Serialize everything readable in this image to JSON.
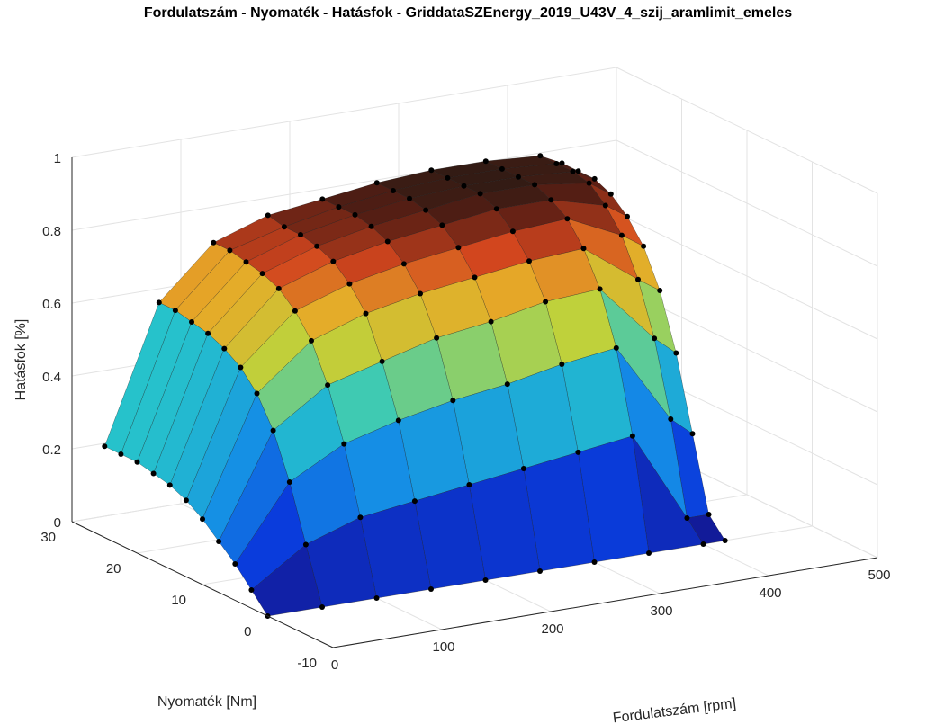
{
  "chart_data": {
    "type": "surface3d",
    "title": "Fordulatszám - Nyomaték - Hatásfok - GriddataSZEnergy_2019_U43V_4_szij_aramlimit_emeles",
    "xlabel": "Fordulatszám [rpm]",
    "ylabel": "Nyomaték [Nm]",
    "zlabel": "Hatásfok [%]",
    "xlim": [
      0,
      500
    ],
    "ylim": [
      -10,
      30
    ],
    "zlim": [
      0,
      1
    ],
    "x_ticks": [
      "0",
      "100",
      "200",
      "300",
      "400",
      "500"
    ],
    "y_ticks": [
      "-10",
      "0",
      "10",
      "20",
      "30"
    ],
    "z_ticks": [
      "0",
      "0.2",
      "0.4",
      "0.6",
      "0.8",
      "1"
    ],
    "grid": true,
    "colormap": "parula-to-black-red",
    "speed_rpm": [
      0,
      50,
      100,
      150,
      200,
      250,
      300,
      350,
      400,
      420
    ],
    "torque_Nm": [
      0,
      2.5,
      5,
      7.5,
      10,
      12.5,
      15,
      17.5,
      20,
      22.5,
      25
    ],
    "efficiency": [
      [
        0.0,
        0.05,
        0.1,
        0.14,
        0.18,
        0.21,
        0.23,
        0.24,
        0.25,
        0.25,
        0.25
      ],
      [
        0.0,
        0.15,
        0.3,
        0.42,
        0.5,
        0.55,
        0.58,
        0.6,
        0.61,
        0.62,
        0.62
      ],
      [
        0.0,
        0.2,
        0.38,
        0.52,
        0.62,
        0.68,
        0.72,
        0.74,
        0.75,
        0.76,
        0.76
      ],
      [
        0.0,
        0.22,
        0.42,
        0.56,
        0.67,
        0.73,
        0.77,
        0.79,
        0.8,
        0.8,
        0.81
      ],
      [
        0.0,
        0.24,
        0.45,
        0.6,
        0.7,
        0.76,
        0.8,
        0.82,
        0.83,
        0.83,
        0.83
      ],
      [
        0.0,
        0.26,
        0.47,
        0.62,
        0.72,
        0.78,
        0.82,
        0.84,
        0.85,
        0.85,
        0.85
      ],
      [
        0.0,
        0.28,
        0.5,
        0.65,
        0.74,
        0.8,
        0.84,
        0.86,
        0.86,
        0.86,
        0.86
      ],
      [
        0.0,
        0.3,
        0.52,
        0.66,
        0.75,
        0.81,
        0.84,
        0.86,
        0.86,
        0.86,
        0.86
      ],
      [
        0.0,
        0.05,
        0.3,
        0.5,
        0.64,
        0.74,
        0.8,
        0.84,
        0.85,
        0.85,
        0.85
      ],
      [
        0.0,
        0.05,
        0.25,
        0.45,
        0.6,
        0.7,
        0.76,
        0.8,
        0.82,
        0.82,
        0.82
      ]
    ]
  }
}
